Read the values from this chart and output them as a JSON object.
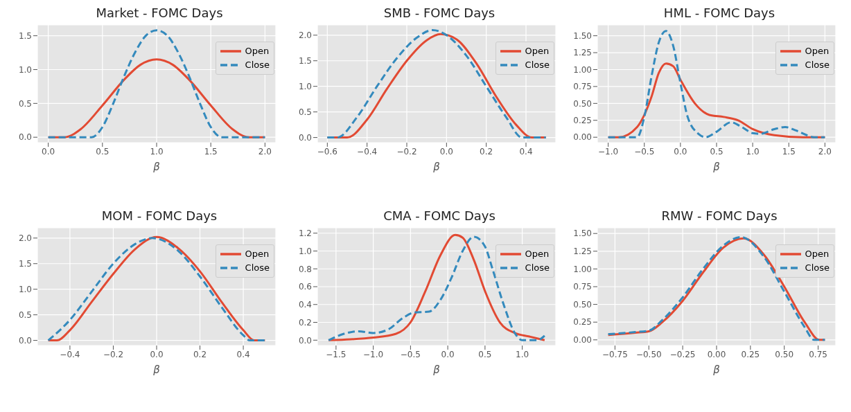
{
  "chart_data": [
    {
      "type": "line",
      "title": "Market - FOMC Days",
      "xlabel": "β",
      "legend": "top right",
      "grid": true,
      "xlim": [
        -0.1,
        2.1
      ],
      "xticks": [
        {
          "value": 0,
          "label": "0.0"
        },
        0.5,
        {
          "value": 1,
          "label": "1.0"
        },
        1.5,
        {
          "value": 2,
          "label": "2.0"
        }
      ],
      "ylim": [
        -0.08,
        1.66
      ],
      "yticks": [
        {
          "value": 0,
          "label": "0.0"
        },
        0.5,
        {
          "value": 1,
          "label": "1.0"
        },
        1.5
      ],
      "series": [
        {
          "name": "Open",
          "color": "#e24a33",
          "line_style": "solid",
          "x": [
            0,
            0.15,
            0.3,
            0.5,
            0.7,
            0.85,
            1.0,
            1.15,
            1.3,
            1.5,
            1.7,
            1.85,
            2.0
          ],
          "values": [
            0,
            0,
            0.12,
            0.47,
            0.85,
            1.07,
            1.15,
            1.07,
            0.85,
            0.47,
            0.12,
            0,
            0
          ]
        },
        {
          "name": "Close",
          "color": "#348abd",
          "line_style": "dashed",
          "x": [
            0,
            0.4,
            0.5,
            0.6,
            0.7,
            0.8,
            0.9,
            1.0,
            1.1,
            1.2,
            1.3,
            1.4,
            1.5,
            1.6,
            2.0
          ],
          "values": [
            0,
            0,
            0.15,
            0.5,
            0.9,
            1.25,
            1.5,
            1.58,
            1.5,
            1.25,
            0.9,
            0.5,
            0.15,
            0,
            0
          ]
        }
      ]
    },
    {
      "type": "line",
      "title": "SMB - FOMC Days",
      "xlabel": "β",
      "legend": "top right",
      "grid": true,
      "xlim": [
        -0.65,
        0.55
      ],
      "xticks": [
        -0.6,
        -0.4,
        -0.2,
        {
          "value": 0,
          "label": "0.0"
        },
        0.2,
        0.4
      ],
      "ylim": [
        -0.1,
        2.2
      ],
      "yticks": [
        {
          "value": 0,
          "label": "0.0"
        },
        0.5,
        {
          "value": 1,
          "label": "1.0"
        },
        1.5,
        {
          "value": 2,
          "label": "2.0"
        }
      ],
      "series": [
        {
          "name": "Open",
          "color": "#e24a33",
          "line_style": "solid",
          "x": [
            -0.6,
            -0.5,
            -0.4,
            -0.3,
            -0.2,
            -0.1,
            -0.03,
            0.05,
            0.15,
            0.25,
            0.35,
            0.43,
            0.5
          ],
          "values": [
            0,
            0,
            0.35,
            0.95,
            1.5,
            1.9,
            2.02,
            1.92,
            1.45,
            0.8,
            0.25,
            0,
            0
          ]
        },
        {
          "name": "Close",
          "color": "#348abd",
          "line_style": "dashed",
          "x": [
            -0.6,
            -0.55,
            -0.45,
            -0.35,
            -0.25,
            -0.15,
            -0.07,
            0.0,
            0.1,
            0.2,
            0.3,
            0.38,
            0.5
          ],
          "values": [
            0,
            0,
            0.4,
            1.0,
            1.55,
            1.95,
            2.1,
            2.0,
            1.6,
            1.0,
            0.4,
            0,
            0
          ]
        }
      ]
    },
    {
      "type": "line",
      "title": "HML - FOMC Days",
      "xlabel": "β",
      "legend": "top right",
      "grid": true,
      "xlim": [
        -1.15,
        2.15
      ],
      "xticks": [
        {
          "value": -1,
          "label": "−1.0"
        },
        {
          "value": -0.5,
          "label": "−0.5"
        },
        {
          "value": 0,
          "label": "0.0"
        },
        0.5,
        {
          "value": 1,
          "label": "1.0"
        },
        1.5,
        {
          "value": 2,
          "label": "2.0"
        }
      ],
      "ylim": [
        -0.08,
        1.66
      ],
      "yticks": [
        {
          "value": 0,
          "label": "0.00"
        },
        0.25,
        {
          "value": 0.5,
          "label": "0.50"
        },
        0.75,
        {
          "value": 1,
          "label": "1.00"
        },
        1.25,
        {
          "value": 1.5,
          "label": "1.50"
        }
      ],
      "series": [
        {
          "name": "Open",
          "color": "#e24a33",
          "line_style": "solid",
          "x": [
            -1.0,
            -0.85,
            -0.6,
            -0.4,
            -0.3,
            -0.2,
            -0.1,
            0.0,
            0.2,
            0.4,
            0.6,
            0.8,
            1.0,
            1.3,
            1.7,
            2.0
          ],
          "values": [
            0,
            0,
            0.15,
            0.6,
            0.95,
            1.09,
            1.05,
            0.85,
            0.5,
            0.33,
            0.3,
            0.25,
            0.12,
            0.03,
            0,
            0
          ]
        },
        {
          "name": "Close",
          "color": "#348abd",
          "line_style": "dashed",
          "x": [
            -1.0,
            -0.6,
            -0.5,
            -0.4,
            -0.3,
            -0.2,
            -0.1,
            0.0,
            0.1,
            0.25,
            0.35,
            0.5,
            0.7,
            0.85,
            1.0,
            1.1,
            1.3,
            1.45,
            1.6,
            1.75,
            1.85,
            2.0
          ],
          "values": [
            0,
            0,
            0.3,
            0.9,
            1.4,
            1.57,
            1.35,
            0.8,
            0.3,
            0.05,
            0,
            0.08,
            0.22,
            0.15,
            0.06,
            0.05,
            0.12,
            0.15,
            0.1,
            0.03,
            0,
            0
          ]
        }
      ]
    },
    {
      "type": "line",
      "title": "MOM - FOMC Days",
      "xlabel": "β",
      "legend": "top right",
      "grid": true,
      "xlim": [
        -0.55,
        0.55
      ],
      "xticks": [
        -0.4,
        -0.2,
        {
          "value": 0,
          "label": "0.0"
        },
        0.2,
        0.4
      ],
      "ylim": [
        -0.1,
        2.2
      ],
      "yticks": [
        {
          "value": 0,
          "label": "0.0"
        },
        0.5,
        {
          "value": 1,
          "label": "1.0"
        },
        1.5,
        {
          "value": 2,
          "label": "2.0"
        }
      ],
      "series": [
        {
          "name": "Open",
          "color": "#e24a33",
          "line_style": "solid",
          "x": [
            -0.5,
            -0.46,
            -0.4,
            -0.3,
            -0.2,
            -0.1,
            0.0,
            0.1,
            0.2,
            0.3,
            0.4,
            0.45,
            0.5
          ],
          "values": [
            0,
            0,
            0.2,
            0.75,
            1.3,
            1.78,
            2.02,
            1.8,
            1.35,
            0.75,
            0.2,
            0,
            0
          ]
        },
        {
          "name": "Close",
          "color": "#348abd",
          "line_style": "dashed",
          "x": [
            -0.5,
            -0.4,
            -0.3,
            -0.2,
            -0.1,
            -0.02,
            0.1,
            0.2,
            0.3,
            0.4,
            0.43,
            0.5
          ],
          "values": [
            0,
            0.4,
            0.95,
            1.5,
            1.88,
            2.0,
            1.75,
            1.25,
            0.65,
            0.1,
            0,
            0
          ]
        }
      ]
    },
    {
      "type": "line",
      "title": "CMA - FOMC Days",
      "xlabel": "β",
      "legend": "top right",
      "grid": true,
      "xlim": [
        -1.75,
        1.45
      ],
      "xticks": [
        -1.5,
        {
          "value": -1,
          "label": "−1.0"
        },
        -0.5,
        {
          "value": 0,
          "label": "0.0"
        },
        0.5,
        {
          "value": 1,
          "label": "1.0"
        }
      ],
      "ylim": [
        -0.06,
        1.26
      ],
      "yticks": [
        {
          "value": 0,
          "label": "0.0"
        },
        0.2,
        0.4,
        0.6,
        0.8,
        {
          "value": 1,
          "label": "1.0"
        },
        1.2
      ],
      "series": [
        {
          "name": "Open",
          "color": "#e24a33",
          "line_style": "solid",
          "x": [
            -1.6,
            -1.3,
            -1.0,
            -0.7,
            -0.5,
            -0.3,
            -0.1,
            0.1,
            0.2,
            0.35,
            0.5,
            0.7,
            0.9,
            1.1,
            1.3
          ],
          "values": [
            0,
            0.01,
            0.03,
            0.07,
            0.2,
            0.55,
            0.95,
            1.18,
            1.15,
            0.9,
            0.55,
            0.2,
            0.08,
            0.04,
            0
          ]
        },
        {
          "name": "Close",
          "color": "#348abd",
          "line_style": "dashed",
          "x": [
            -1.6,
            -1.4,
            -1.2,
            -1.0,
            -0.8,
            -0.6,
            -0.45,
            -0.25,
            -0.1,
            0.05,
            0.2,
            0.35,
            0.5,
            0.6,
            0.75,
            0.9,
            1.0,
            1.2,
            1.3
          ],
          "values": [
            0,
            0.07,
            0.1,
            0.08,
            0.12,
            0.25,
            0.31,
            0.32,
            0.45,
            0.7,
            1.0,
            1.16,
            1.05,
            0.8,
            0.4,
            0.08,
            0,
            0,
            0.05
          ]
        }
      ]
    },
    {
      "type": "line",
      "title": "RMW - FOMC Days",
      "xlabel": "β",
      "legend": "top right",
      "grid": true,
      "xlim": [
        -0.88,
        0.88
      ],
      "xticks": [
        -0.75,
        {
          "value": -0.5,
          "label": "−0.50"
        },
        -0.25,
        {
          "value": 0,
          "label": "0.00"
        },
        0.25,
        {
          "value": 0.5,
          "label": "0.50"
        },
        0.75
      ],
      "ylim": [
        -0.08,
        1.58
      ],
      "yticks": [
        {
          "value": 0,
          "label": "0.00"
        },
        0.25,
        {
          "value": 0.5,
          "label": "0.50"
        },
        0.75,
        {
          "value": 1,
          "label": "1.00"
        },
        1.25,
        {
          "value": 1.5,
          "label": "1.50"
        }
      ],
      "series": [
        {
          "name": "Open",
          "color": "#e24a33",
          "line_style": "solid",
          "x": [
            -0.8,
            -0.6,
            -0.5,
            -0.4,
            -0.25,
            -0.1,
            0.05,
            0.2,
            0.35,
            0.5,
            0.65,
            0.76,
            0.8
          ],
          "values": [
            0.07,
            0.1,
            0.12,
            0.25,
            0.55,
            0.95,
            1.3,
            1.43,
            1.2,
            0.75,
            0.25,
            0,
            0
          ]
        },
        {
          "name": "Close",
          "color": "#348abd",
          "line_style": "dashed",
          "x": [
            -0.8,
            -0.6,
            -0.5,
            -0.4,
            -0.25,
            -0.1,
            0.05,
            0.18,
            0.35,
            0.5,
            0.65,
            0.72,
            0.8
          ],
          "values": [
            0.08,
            0.11,
            0.13,
            0.28,
            0.6,
            1.0,
            1.33,
            1.45,
            1.17,
            0.68,
            0.18,
            0,
            0
          ]
        }
      ]
    }
  ]
}
